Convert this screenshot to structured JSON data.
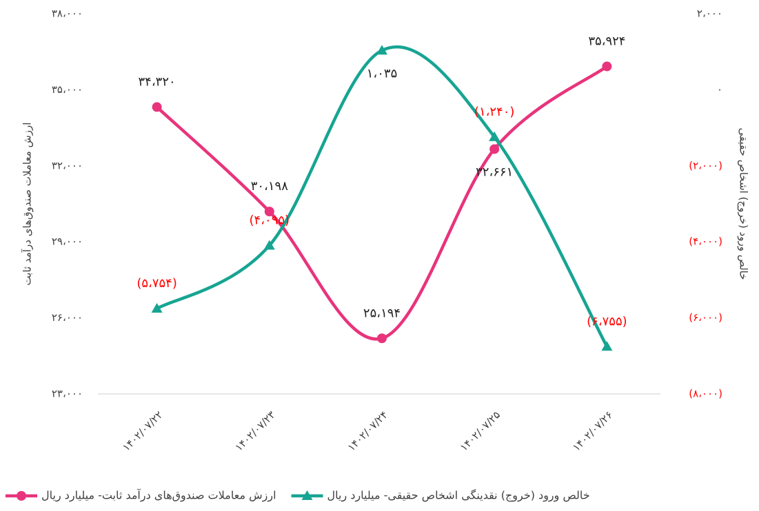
{
  "chart_data": {
    "type": "line",
    "categories": [
      "۱۴۰۲/۰۷/۲۲",
      "۱۴۰۲/۰۷/۲۳",
      "۱۴۰۲/۰۷/۲۴",
      "۱۴۰۲/۰۷/۲۵",
      "۱۴۰۲/۰۷/۲۶"
    ],
    "ylabel": "ارزش معاملات صندوق‌های درآمد ثابت",
    "y2label": "خالص ورود (خروج) اشخاص حقیقی",
    "ylim": [
      23000,
      38000
    ],
    "yticks": [
      {
        "value": 23000,
        "label": "۲۳،۰۰۰"
      },
      {
        "value": 26000,
        "label": "۲۶،۰۰۰"
      },
      {
        "value": 29000,
        "label": "۲۹،۰۰۰"
      },
      {
        "value": 32000,
        "label": "۳۲،۰۰۰"
      },
      {
        "value": 35000,
        "label": "۳۵،۰۰۰"
      },
      {
        "value": 38000,
        "label": "۳۸،۰۰۰"
      }
    ],
    "y2lim": [
      -8000,
      2000
    ],
    "y2ticks": [
      {
        "value": -8000,
        "label": "(۸،۰۰۰)"
      },
      {
        "value": -6000,
        "label": "(۶،۰۰۰)"
      },
      {
        "value": -4000,
        "label": "(۴،۰۰۰)"
      },
      {
        "value": -2000,
        "label": "(۲،۰۰۰)"
      },
      {
        "value": 0,
        "label": "۰"
      },
      {
        "value": 2000,
        "label": "۲،۰۰۰"
      }
    ],
    "negative_color": "#ff0000",
    "legend": "bottom",
    "series": [
      {
        "name": "ارزش معاملات صندوق‌های درآمد ثابت- میلیارد ریال",
        "color": "#e8347c",
        "marker": "circle",
        "values": [
          34320,
          30198,
          25194,
          32661,
          35924
        ],
        "value_labels": [
          "۳۴،۳۲۰",
          "۳۰،۱۹۸",
          "۲۵،۱۹۴",
          "۳۲،۶۶۱",
          "۳۵،۹۲۴"
        ]
      },
      {
        "name": "خالص ورود (خروج) نقدینگی اشخاص حقیقی- میلیارد ریال",
        "color": "#17a493",
        "marker": "triangle",
        "axis": "y2",
        "values": [
          -5754,
          -4095,
          1035,
          -1240,
          -6755
        ],
        "value_labels": [
          "(۵،۷۵۴)",
          "(۴،۰۹۵)",
          "۱،۰۳۵",
          "(۱،۲۴۰)",
          "(۶،۷۵۵)"
        ]
      }
    ]
  }
}
